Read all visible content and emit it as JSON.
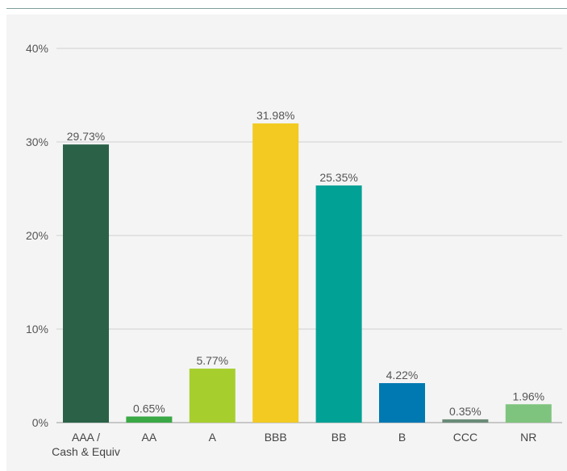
{
  "chart_data": {
    "type": "bar",
    "categories": [
      [
        "AAA /",
        "Cash & Equiv"
      ],
      [
        "AA"
      ],
      [
        "A"
      ],
      [
        "BBB"
      ],
      [
        "BB"
      ],
      [
        "B"
      ],
      [
        "CCC"
      ],
      [
        "NR"
      ]
    ],
    "values": [
      29.73,
      0.65,
      5.77,
      31.98,
      25.35,
      4.22,
      0.35,
      1.96
    ],
    "value_labels": [
      "29.73%",
      "0.65%",
      "5.77%",
      "31.98%",
      "25.35%",
      "4.22%",
      "0.35%",
      "1.96%"
    ],
    "colors": [
      "#2b6247",
      "#39a845",
      "#a6cf2e",
      "#f2ca22",
      "#02a196",
      "#0078b2",
      "#6a8b78",
      "#7ec47e"
    ],
    "ylim": [
      0,
      40
    ],
    "yticks": [
      0,
      10,
      20,
      30,
      40
    ],
    "ytick_labels": [
      "0%",
      "10%",
      "20%",
      "30%",
      "40%"
    ],
    "title": "",
    "xlabel": "",
    "ylabel": "",
    "grid": true,
    "legend": "none"
  }
}
